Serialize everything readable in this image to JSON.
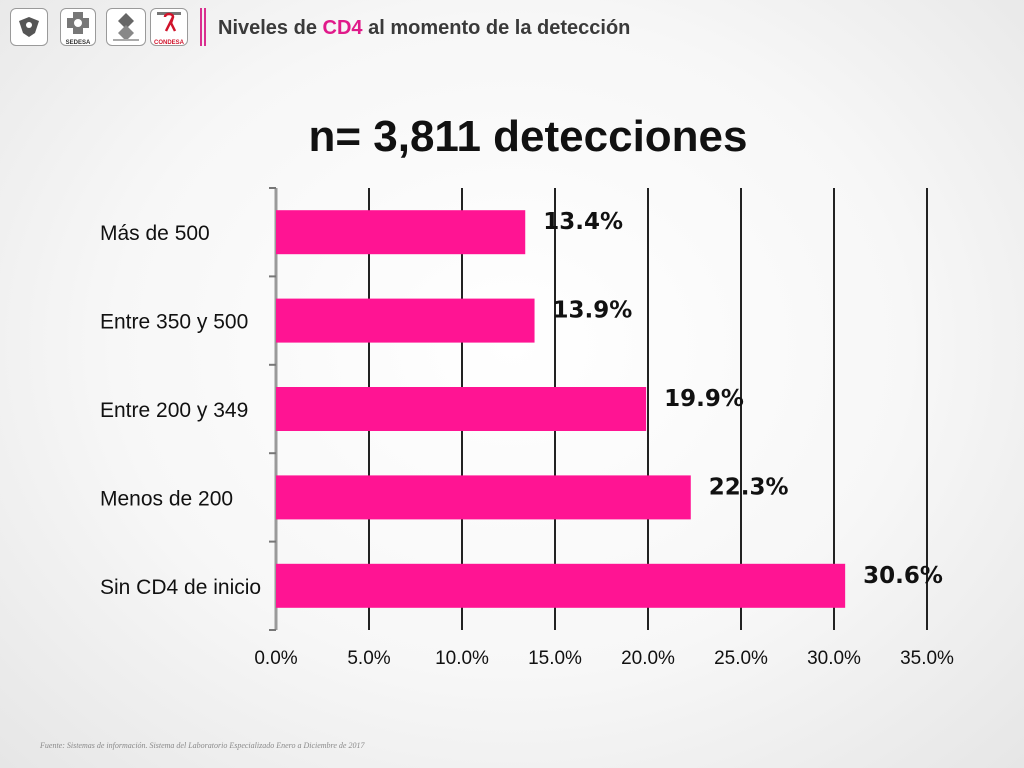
{
  "header": {
    "title_prefix": "Niveles de ",
    "title_highlight": "CD4",
    "title_suffix": " al momento de la detección",
    "logos": [
      {
        "name": "emblem",
        "icon": "eagle-emblem-icon",
        "text": ""
      },
      {
        "name": "sedesa",
        "icon": "sedesa-logo-icon",
        "text": "SEDESA"
      },
      {
        "name": "clinic",
        "icon": "clinic-logo-icon",
        "text": ""
      },
      {
        "name": "condesa",
        "icon": "red-ribbon-icon",
        "text": "CONDESA"
      }
    ]
  },
  "chart_data": {
    "type": "bar",
    "orientation": "horizontal",
    "title": "n= 3,811 detecciones",
    "categories": [
      "Más de 500",
      "Entre 350 y 500",
      "Entre 200 y 349",
      "Menos de 200",
      "Sin CD4 de inicio"
    ],
    "values": [
      13.4,
      13.9,
      19.9,
      22.3,
      30.6
    ],
    "data_labels": [
      "13.4%",
      "13.9%",
      "19.9%",
      "22.3%",
      "30.6%"
    ],
    "x_ticks": [
      "0.0%",
      "5.0%",
      "10.0%",
      "15.0%",
      "20.0%",
      "25.0%",
      "30.0%",
      "35.0%"
    ],
    "xlim": [
      0,
      35
    ],
    "tick_step": 5,
    "grid": true,
    "bar_color": "#ff1493"
  },
  "source_note": "Fuente: Sistemas de información. Sistema del Laboratorio Especializado Enero a Diciembre de 2017"
}
